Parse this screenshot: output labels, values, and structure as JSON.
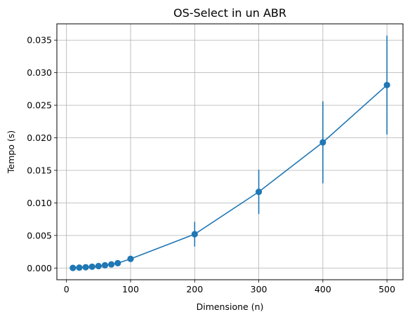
{
  "chart_data": {
    "type": "line",
    "title": "OS-Select in un ABR",
    "xlabel": "Dimensione (n)",
    "ylabel": "Tempo (s)",
    "xlim": [
      -15,
      525
    ],
    "ylim": [
      -0.0018,
      0.0375
    ],
    "xticks": [
      0,
      100,
      200,
      300,
      400,
      500
    ],
    "xtick_labels": [
      "0",
      "100",
      "200",
      "300",
      "400",
      "500"
    ],
    "yticks": [
      0.0,
      0.005,
      0.01,
      0.015,
      0.02,
      0.025,
      0.03,
      0.035
    ],
    "ytick_labels": [
      "0.000",
      "0.005",
      "0.010",
      "0.015",
      "0.020",
      "0.025",
      "0.030",
      "0.035"
    ],
    "grid": true,
    "series": [
      {
        "color": "#1f77b4",
        "x": [
          10,
          20,
          30,
          40,
          50,
          60,
          70,
          80,
          100,
          200,
          300,
          400,
          500
        ],
        "y": [
          2e-05,
          6e-05,
          0.00012,
          0.0002,
          0.0003,
          0.00042,
          0.00056,
          0.00074,
          0.0014,
          0.0052,
          0.0117,
          0.0193,
          0.0281
        ],
        "yerr": [
          1e-05,
          2e-05,
          4e-05,
          6e-05,
          8e-05,
          0.0001,
          0.00012,
          0.00015,
          0.0003,
          0.0019,
          0.0034,
          0.0063,
          0.0076
        ]
      }
    ]
  }
}
